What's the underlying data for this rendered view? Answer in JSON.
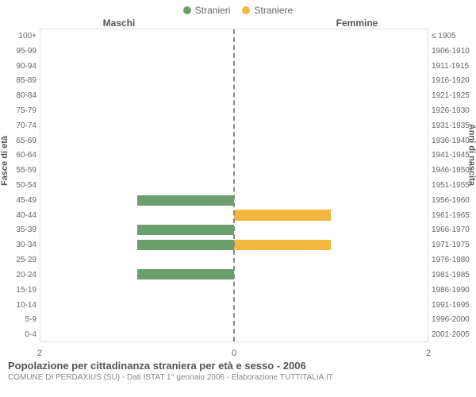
{
  "legend": {
    "male": {
      "label": "Stranieri",
      "color": "#6a9e6a"
    },
    "female": {
      "label": "Straniere",
      "color": "#f3b63e"
    }
  },
  "headers": {
    "male": "Maschi",
    "female": "Femmine"
  },
  "axis_titles": {
    "left": "Fasce di età",
    "right": "Anni di nascita"
  },
  "x": {
    "max": 2,
    "ticks": [
      2,
      0,
      2
    ]
  },
  "colors": {
    "male_bar": "#6a9e6a",
    "female_bar": "#f3b63e",
    "center_line": "#888888",
    "grid": "#dddddd",
    "background": "#ffffff"
  },
  "rows": [
    {
      "age": "100+",
      "birth": "≤ 1905",
      "m": 0,
      "f": 0
    },
    {
      "age": "95-99",
      "birth": "1906-1910",
      "m": 0,
      "f": 0
    },
    {
      "age": "90-94",
      "birth": "1911-1915",
      "m": 0,
      "f": 0
    },
    {
      "age": "85-89",
      "birth": "1916-1920",
      "m": 0,
      "f": 0
    },
    {
      "age": "80-84",
      "birth": "1921-1925",
      "m": 0,
      "f": 0
    },
    {
      "age": "75-79",
      "birth": "1926-1930",
      "m": 0,
      "f": 0
    },
    {
      "age": "70-74",
      "birth": "1931-1935",
      "m": 0,
      "f": 0
    },
    {
      "age": "65-69",
      "birth": "1936-1940",
      "m": 0,
      "f": 0
    },
    {
      "age": "60-64",
      "birth": "1941-1945",
      "m": 0,
      "f": 0
    },
    {
      "age": "55-59",
      "birth": "1946-1950",
      "m": 0,
      "f": 0
    },
    {
      "age": "50-54",
      "birth": "1951-1955",
      "m": 0,
      "f": 0
    },
    {
      "age": "45-49",
      "birth": "1956-1960",
      "m": 1,
      "f": 0
    },
    {
      "age": "40-44",
      "birth": "1961-1965",
      "m": 0,
      "f": 1
    },
    {
      "age": "35-39",
      "birth": "1966-1970",
      "m": 1,
      "f": 0
    },
    {
      "age": "30-34",
      "birth": "1971-1975",
      "m": 1,
      "f": 1
    },
    {
      "age": "25-29",
      "birth": "1976-1980",
      "m": 0,
      "f": 0
    },
    {
      "age": "20-24",
      "birth": "1981-1985",
      "m": 1,
      "f": 0
    },
    {
      "age": "15-19",
      "birth": "1986-1990",
      "m": 0,
      "f": 0
    },
    {
      "age": "10-14",
      "birth": "1991-1995",
      "m": 0,
      "f": 0
    },
    {
      "age": "5-9",
      "birth": "1996-2000",
      "m": 0,
      "f": 0
    },
    {
      "age": "0-4",
      "birth": "2001-2005",
      "m": 0,
      "f": 0
    }
  ],
  "footer": {
    "title": "Popolazione per cittadinanza straniera per età e sesso - 2006",
    "subtitle": "COMUNE DI PERDAXIUS (SU) - Dati ISTAT 1° gennaio 2006 - Elaborazione TUTTITALIA.IT"
  },
  "chart_type": "population-pyramid"
}
